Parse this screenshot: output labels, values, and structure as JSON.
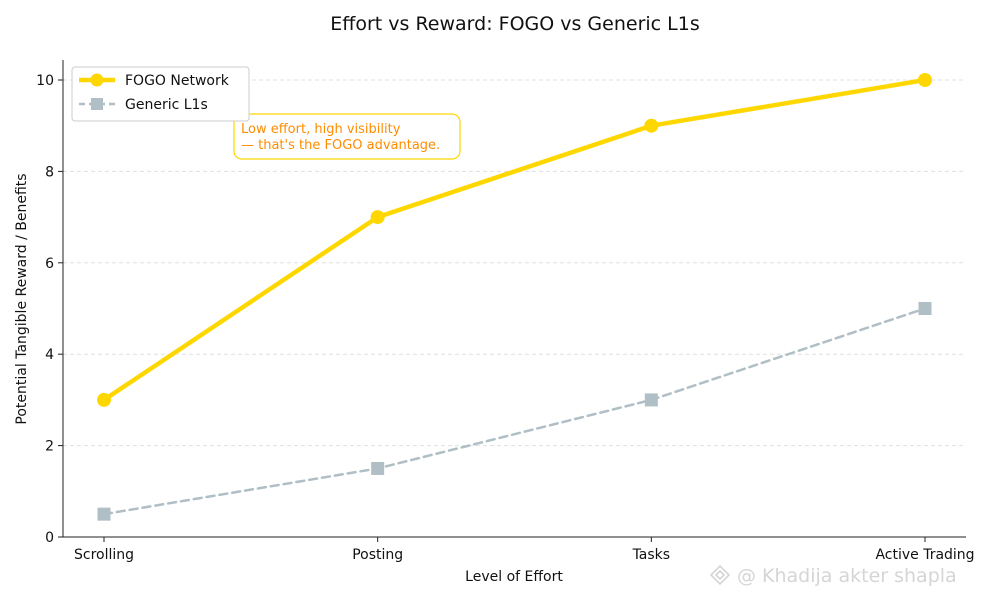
{
  "chart_data": {
    "type": "line",
    "title": "Effort vs Reward: FOGO vs Generic L1s",
    "xlabel": "Level of Effort",
    "ylabel": "Potential Tangible Reward / Benefits",
    "categories": [
      "Scrolling",
      "Posting",
      "Tasks",
      "Active Trading"
    ],
    "ylim": [
      0,
      10
    ],
    "yticks": [
      0,
      2,
      4,
      6,
      8,
      10
    ],
    "grid": "horizontal-dashed",
    "legend_position": "top-left",
    "series": [
      {
        "name": "FOGO Network",
        "values": [
          3,
          7,
          9,
          10
        ],
        "color": "#FFD700",
        "marker": "circle",
        "style": "solid"
      },
      {
        "name": "Generic L1s",
        "values": [
          0.5,
          1.5,
          3,
          5
        ],
        "color": "#B0BEC5",
        "marker": "square",
        "style": "dashed"
      }
    ],
    "annotation": {
      "lines": [
        "Low effort, high visibility",
        "— that's the FOGO advantage."
      ],
      "color": "#FF8C00",
      "border_color": "#FFD700"
    }
  },
  "watermark": "@ Khadija akter shapla"
}
